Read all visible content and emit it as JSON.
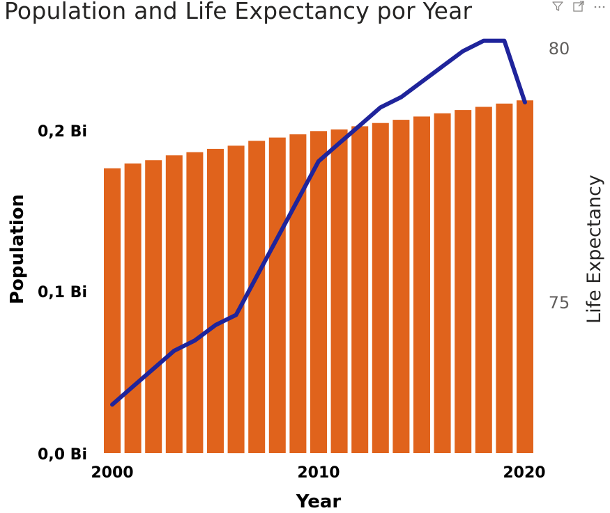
{
  "chart_title": "Population and Life Expectancy por Year",
  "header_icons": [
    "filter-icon",
    "focus-mode-icon",
    "more-options-icon"
  ],
  "colors": {
    "bars": "#E0631C",
    "line": "#1F249B",
    "text": "#000000",
    "muted": "#605E5C"
  },
  "chart_data": {
    "type": "bar",
    "title": "Population and Life Expectancy por Year",
    "xlabel": "Year",
    "ylabel": "Population",
    "y2label": "Life Expectancy",
    "x_ticks": [
      "2000",
      "2010",
      "2020"
    ],
    "y_ticks": [
      "0,0 Bi",
      "0,1 Bi",
      "0,2 Bi"
    ],
    "y2_ticks": [
      "75",
      "80"
    ],
    "ylim": [
      0,
      0.28
    ],
    "y2lim": [
      72.1,
      80.2
    ],
    "grid": false,
    "x": [
      2000,
      2001,
      2002,
      2003,
      2004,
      2005,
      2006,
      2007,
      2008,
      2009,
      2010,
      2011,
      2012,
      2013,
      2014,
      2015,
      2016,
      2017,
      2018,
      2019,
      2020
    ],
    "series": [
      {
        "name": "Population",
        "type": "bar",
        "axis": "left",
        "unit": "billions",
        "values": [
          0.176,
          0.179,
          0.181,
          0.184,
          0.186,
          0.188,
          0.19,
          0.193,
          0.195,
          0.197,
          0.199,
          0.2,
          0.202,
          0.204,
          0.206,
          0.208,
          0.21,
          0.212,
          0.214,
          0.216,
          0.218
        ]
      },
      {
        "name": "Life Expectancy",
        "type": "line",
        "axis": "right",
        "values": [
          73.0,
          73.35,
          73.7,
          74.05,
          74.25,
          74.55,
          74.75,
          75.5,
          76.25,
          77.0,
          77.75,
          78.1,
          78.45,
          78.8,
          79.0,
          79.3,
          79.6,
          79.9,
          80.1,
          80.1,
          78.9
        ]
      }
    ]
  }
}
